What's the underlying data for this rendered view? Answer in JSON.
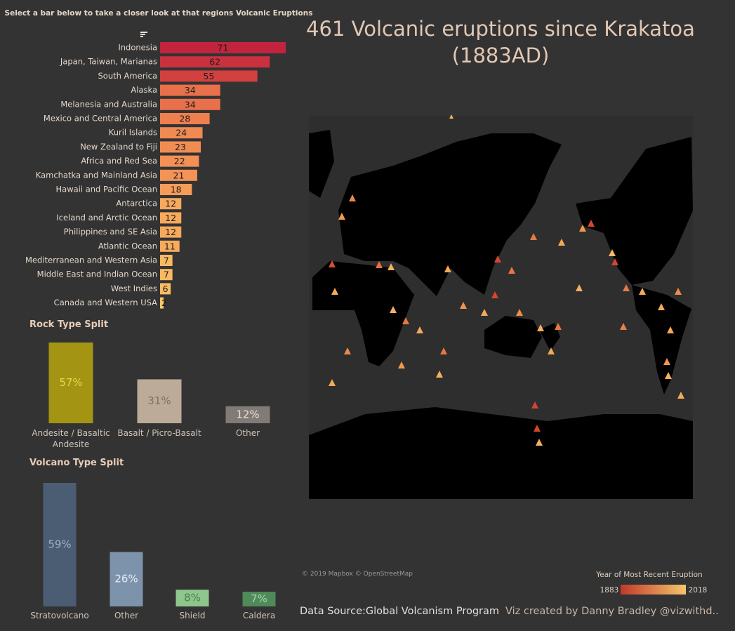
{
  "instruction": "Select a bar below to take a closer look at that regions Volcanic Eruptions",
  "header": {
    "title": "461 Volcanic eruptions since Krakatoa (1883AD)"
  },
  "chart_data": [
    {
      "type": "hbar",
      "categories": [
        "Indonesia",
        "Japan, Taiwan, Marianas",
        "South America",
        "Alaska",
        "Melanesia and Australia",
        "Mexico and Central America",
        "Kuril Islands",
        "New Zealand to Fiji",
        "Africa and Red Sea",
        "Kamchatka and Mainland Asia",
        "Hawaii and Pacific Ocean",
        "Antarctica",
        "Iceland and Arctic Ocean",
        "Philippines and SE Asia",
        "Atlantic Ocean",
        "Mediterranean and Western Asia",
        "Middle East and Indian Ocean",
        "West Indies",
        "Canada and Western USA"
      ],
      "values": [
        71,
        62,
        55,
        34,
        34,
        28,
        24,
        23,
        22,
        21,
        18,
        12,
        12,
        12,
        11,
        7,
        7,
        6,
        2
      ],
      "colors": [
        "#c2243e",
        "#c9313f",
        "#d24040",
        "#e8704a",
        "#e8704a",
        "#ee8050",
        "#f08a52",
        "#f18d53",
        "#f29055",
        "#f39356",
        "#f59c58",
        "#f7a95c",
        "#f7a95c",
        "#f7a95c",
        "#f7ab5d",
        "#f9b962",
        "#f9b962",
        "#fabd64",
        "#fbc466"
      ]
    },
    {
      "type": "bar",
      "title": "Rock Type Split",
      "categories": [
        "Andesite / Basaltic Andesite",
        "Basalt / Picro-Basalt",
        "Other"
      ],
      "values": [
        57,
        31,
        12
      ],
      "value_labels": [
        "57%",
        "31%",
        "12%"
      ],
      "colors": [
        "#a39413",
        "#bcab98",
        "#827a74"
      ]
    },
    {
      "type": "bar",
      "title": "Volcano Type Split",
      "categories": [
        "Stratovolcano",
        "Other",
        "Shield",
        "Caldera"
      ],
      "values": [
        59,
        26,
        8,
        7
      ],
      "value_labels": [
        "59%",
        "26%",
        "8%",
        "7%"
      ],
      "colors": [
        "#4b5d73",
        "#7d93ab",
        "#8dc78e",
        "#4f8a5a"
      ]
    }
  ],
  "map": {
    "credit": "© 2019 Mapbox © OpenStreetMap",
    "legend": {
      "title": "Year of Most Recent Eruption",
      "range": [
        1883,
        2018
      ],
      "colors": [
        "#c0392b",
        "#f6c56a"
      ]
    }
  },
  "footer": {
    "source": "Data Source:Global Volcanism Program",
    "credit": "Viz created by Danny Bradley @vizwithd.."
  }
}
